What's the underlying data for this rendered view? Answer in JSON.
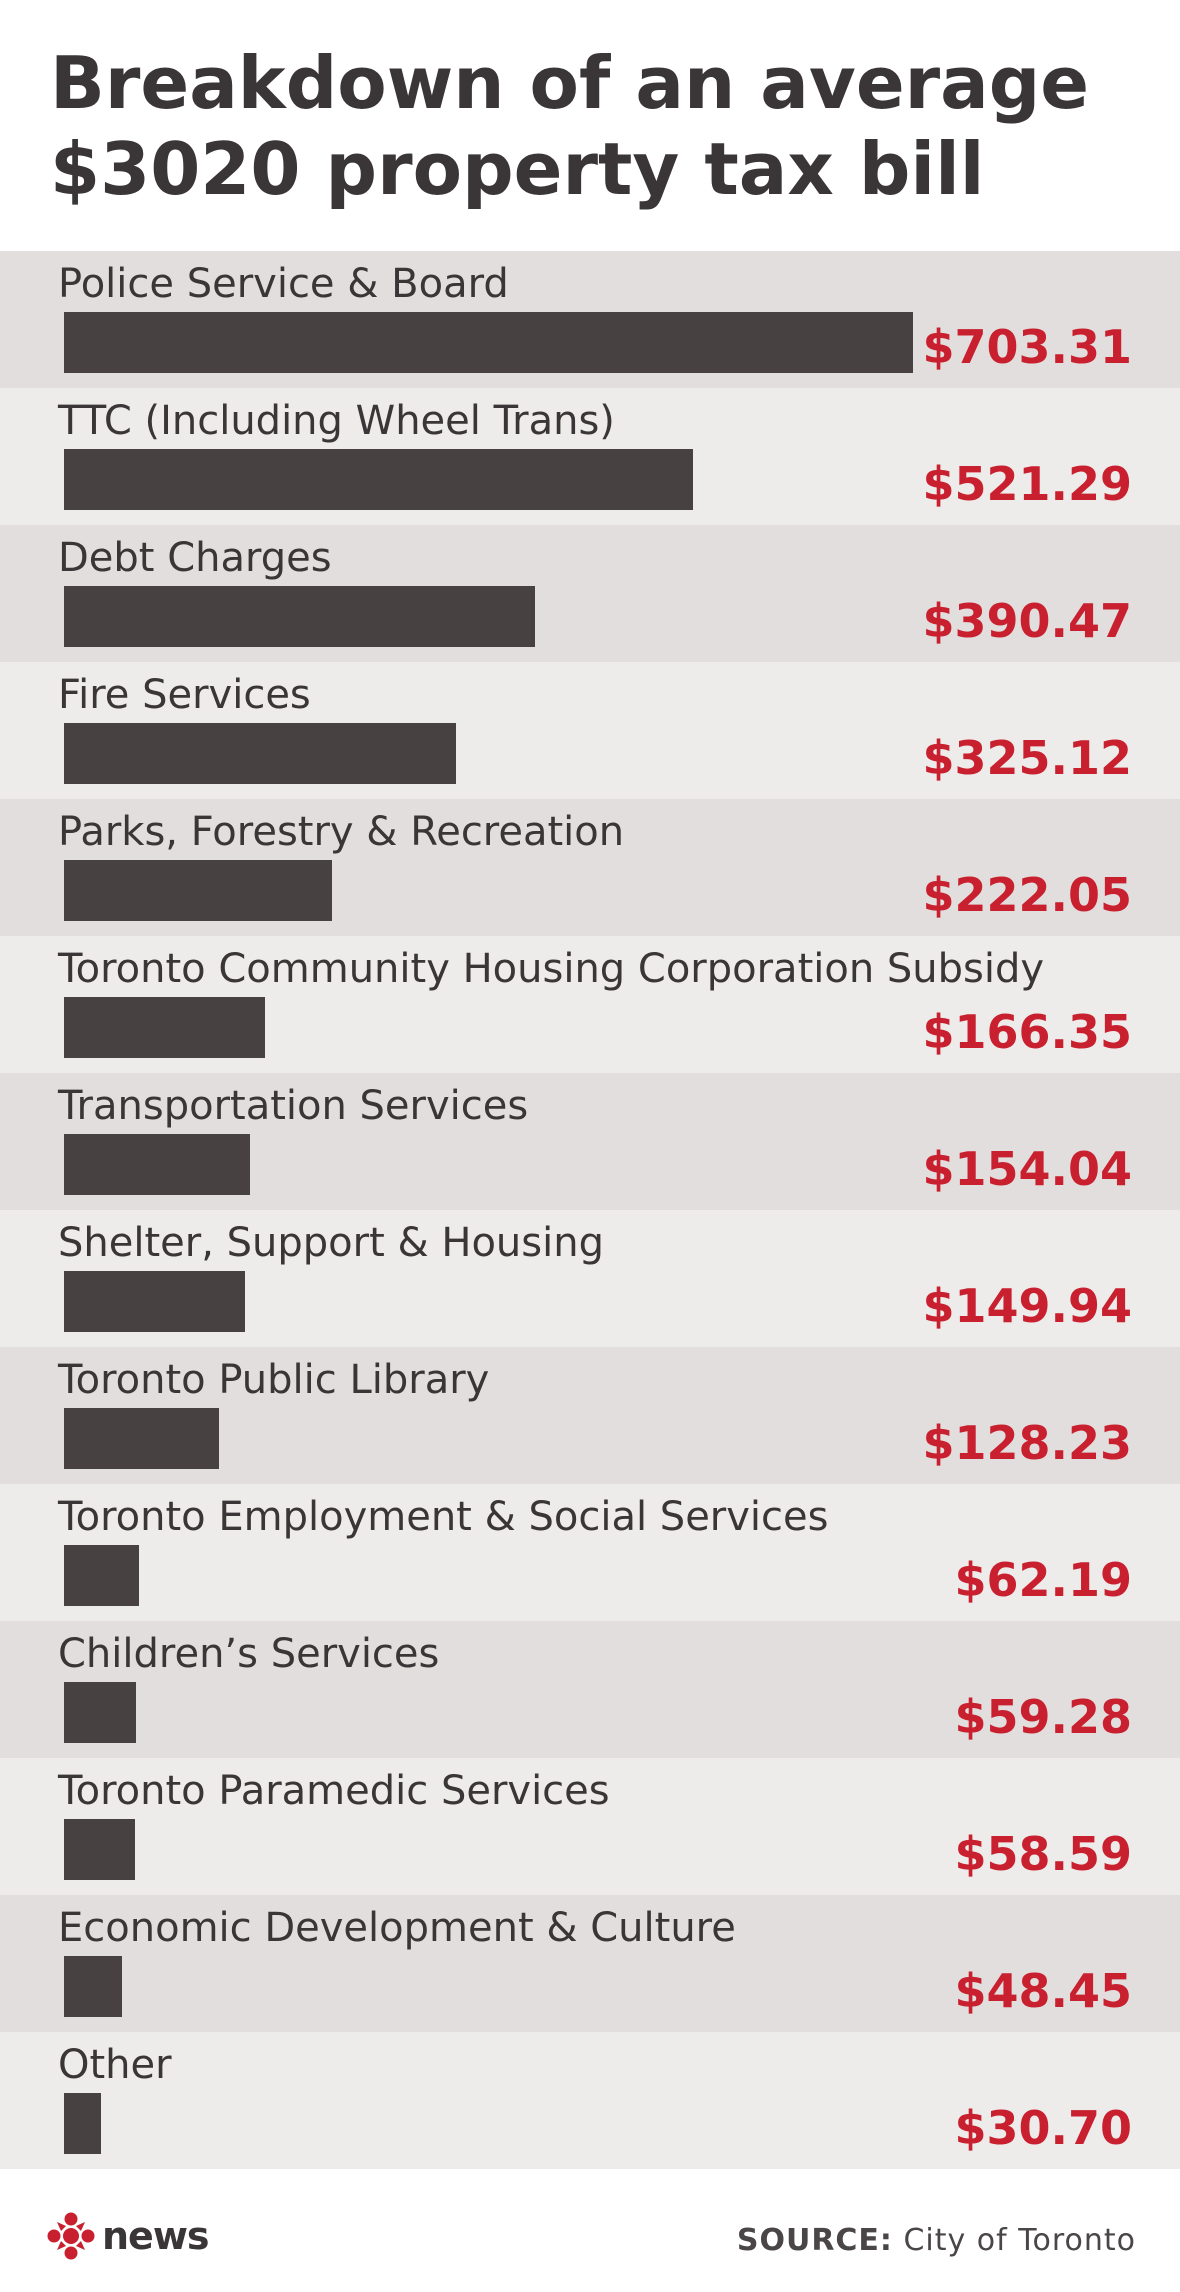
{
  "title_lines": [
    "Breakdown of an average",
    "$3020 property tax bill"
  ],
  "brand": "news",
  "source": {
    "label": "SOURCE:",
    "text": " City of Toronto"
  },
  "colors": {
    "bar": "#474142",
    "value": "#c8202f",
    "row_odd": "#e3dede",
    "row_even": "#eeebeb"
  },
  "chart_data": {
    "type": "bar",
    "orientation": "horizontal",
    "title": "Breakdown of an average $3020 property tax bill",
    "categories": [
      "Police Service & Board",
      "TTC (Including Wheel Trans)",
      "Debt Charges",
      "Fire Services",
      "Parks, Forestry & Recreation",
      "Toronto Community Housing Corporation Subsidy",
      "Transportation Services",
      "Shelter, Support & Housing",
      "Toronto Public Library",
      "Toronto Employment & Social Services",
      "Children’s Services",
      "Toronto Paramedic Services",
      "Economic Development & Culture",
      "Other"
    ],
    "values": [
      703.31,
      521.29,
      390.47,
      325.12,
      222.05,
      166.35,
      154.04,
      149.94,
      128.23,
      62.19,
      59.28,
      58.59,
      48.45,
      30.7
    ],
    "value_labels": [
      "$703.31",
      "$521.29",
      "$390.47",
      "$325.12",
      "$222.05",
      "$166.35",
      "$154.04",
      "$149.94",
      "$128.23",
      "$62.19",
      "$59.28",
      "$58.59",
      "$48.45",
      "$30.70"
    ],
    "xlim": [
      0,
      703.31
    ],
    "grid": false
  }
}
